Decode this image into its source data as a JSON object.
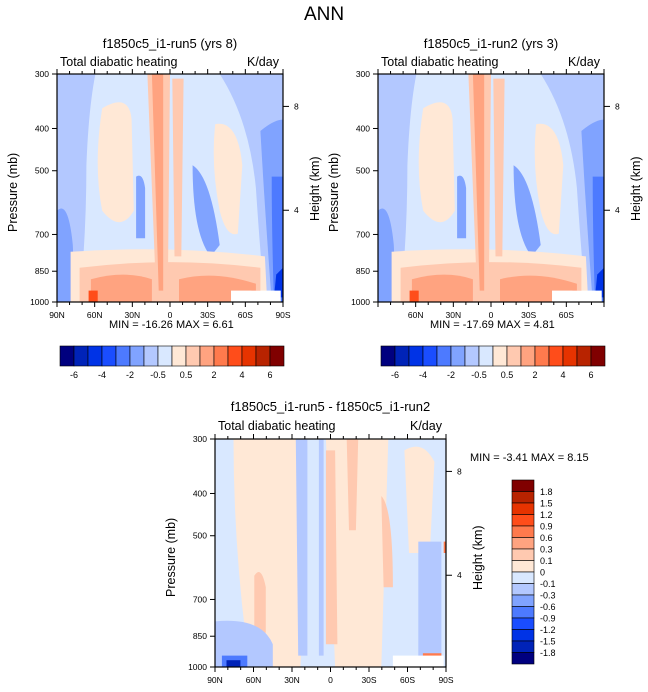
{
  "page_title": "ANN",
  "colors": {
    "levels16": [
      "#00007f",
      "#0023b8",
      "#0033e6",
      "#1a4dff",
      "#4d7aff",
      "#80a3ff",
      "#b3c8ff",
      "#d9e8ff",
      "#ffe8d6",
      "#ffc9b0",
      "#ffa380",
      "#ff7a4d",
      "#ff4d1a",
      "#e63300",
      "#b82300",
      "#800000"
    ]
  },
  "chart_data": [
    {
      "type": "heatmap",
      "title": "f1850c5_i1-run5 (yrs 8)",
      "left_subtitle": "Total diabatic heating",
      "right_subtitle": "K/day",
      "xlabel": "",
      "ylabel": "Pressure (mb)",
      "ylabel_right": "Height (km)",
      "x_ticks": [
        "90N",
        "60N",
        "30N",
        "0",
        "30S",
        "60S",
        "90S"
      ],
      "y_ticks": [
        "300",
        "400",
        "500",
        "700",
        "850",
        "1000"
      ],
      "y_tick_values": [
        300,
        400,
        500,
        700,
        850,
        1000
      ],
      "y_right_ticks": [
        "8",
        "4"
      ],
      "xlim": [
        "90N",
        "90S"
      ],
      "ylim": [
        1000,
        300
      ],
      "stats": "MIN = -16.26  MAX =   6.61",
      "colorbar": {
        "orientation": "horizontal",
        "labels": [
          "-6",
          "-4",
          "-2",
          "-0.5",
          "0.5",
          "2",
          "4",
          "6"
        ],
        "boundaries": [
          "-6",
          "-5",
          "-4",
          "-3",
          "-2",
          "-1",
          "-0.5",
          "0",
          "0.5",
          "1",
          "2",
          "3",
          "4",
          "5",
          "6"
        ]
      }
    },
    {
      "type": "heatmap",
      "title": "f1850c5_i1-run2 (yrs 3)",
      "left_subtitle": "Total diabatic heating",
      "right_subtitle": "K/day",
      "xlabel": "",
      "ylabel": "Pressure (mb)",
      "ylabel_right": "Height (km)",
      "x_ticks": [
        "60N",
        "30N",
        "0",
        "30S",
        "60S"
      ],
      "y_ticks": [
        "300",
        "400",
        "500",
        "700",
        "850",
        "1000"
      ],
      "y_tick_values": [
        300,
        400,
        500,
        700,
        850,
        1000
      ],
      "y_right_ticks": [
        "8",
        "4"
      ],
      "xlim": [
        "90N",
        "90S"
      ],
      "ylim": [
        1000,
        300
      ],
      "stats": "MIN = -17.69  MAX =   4.81",
      "colorbar": {
        "orientation": "horizontal",
        "labels": [
          "-6",
          "-4",
          "-2",
          "-0.5",
          "0.5",
          "2",
          "4",
          "6"
        ]
      }
    },
    {
      "type": "heatmap",
      "title": "f1850c5_i1-run5 - f1850c5_i1-run2",
      "left_subtitle": "Total diabatic heating",
      "right_subtitle": "K/day",
      "xlabel": "",
      "ylabel": "Pressure (mb)",
      "ylabel_right": "Height (km)",
      "x_ticks": [
        "90N",
        "60N",
        "30N",
        "0",
        "30S",
        "60S",
        "90S"
      ],
      "y_ticks": [
        "300",
        "400",
        "500",
        "700",
        "850",
        "1000"
      ],
      "y_tick_values": [
        300,
        400,
        500,
        700,
        850,
        1000
      ],
      "y_right_ticks": [
        "8",
        "4"
      ],
      "xlim": [
        "90N",
        "90S"
      ],
      "ylim": [
        1000,
        300
      ],
      "stats": "MIN =  -3.41  MAX =   8.15",
      "colorbar": {
        "orientation": "vertical",
        "labels": [
          "1.8",
          "1.5",
          "1.2",
          "0.9",
          "0.6",
          "0.3",
          "0.1",
          "0",
          "-0.1",
          "-0.3",
          "-0.6",
          "-0.9",
          "-1.2",
          "-1.5",
          "-1.8"
        ]
      }
    }
  ]
}
